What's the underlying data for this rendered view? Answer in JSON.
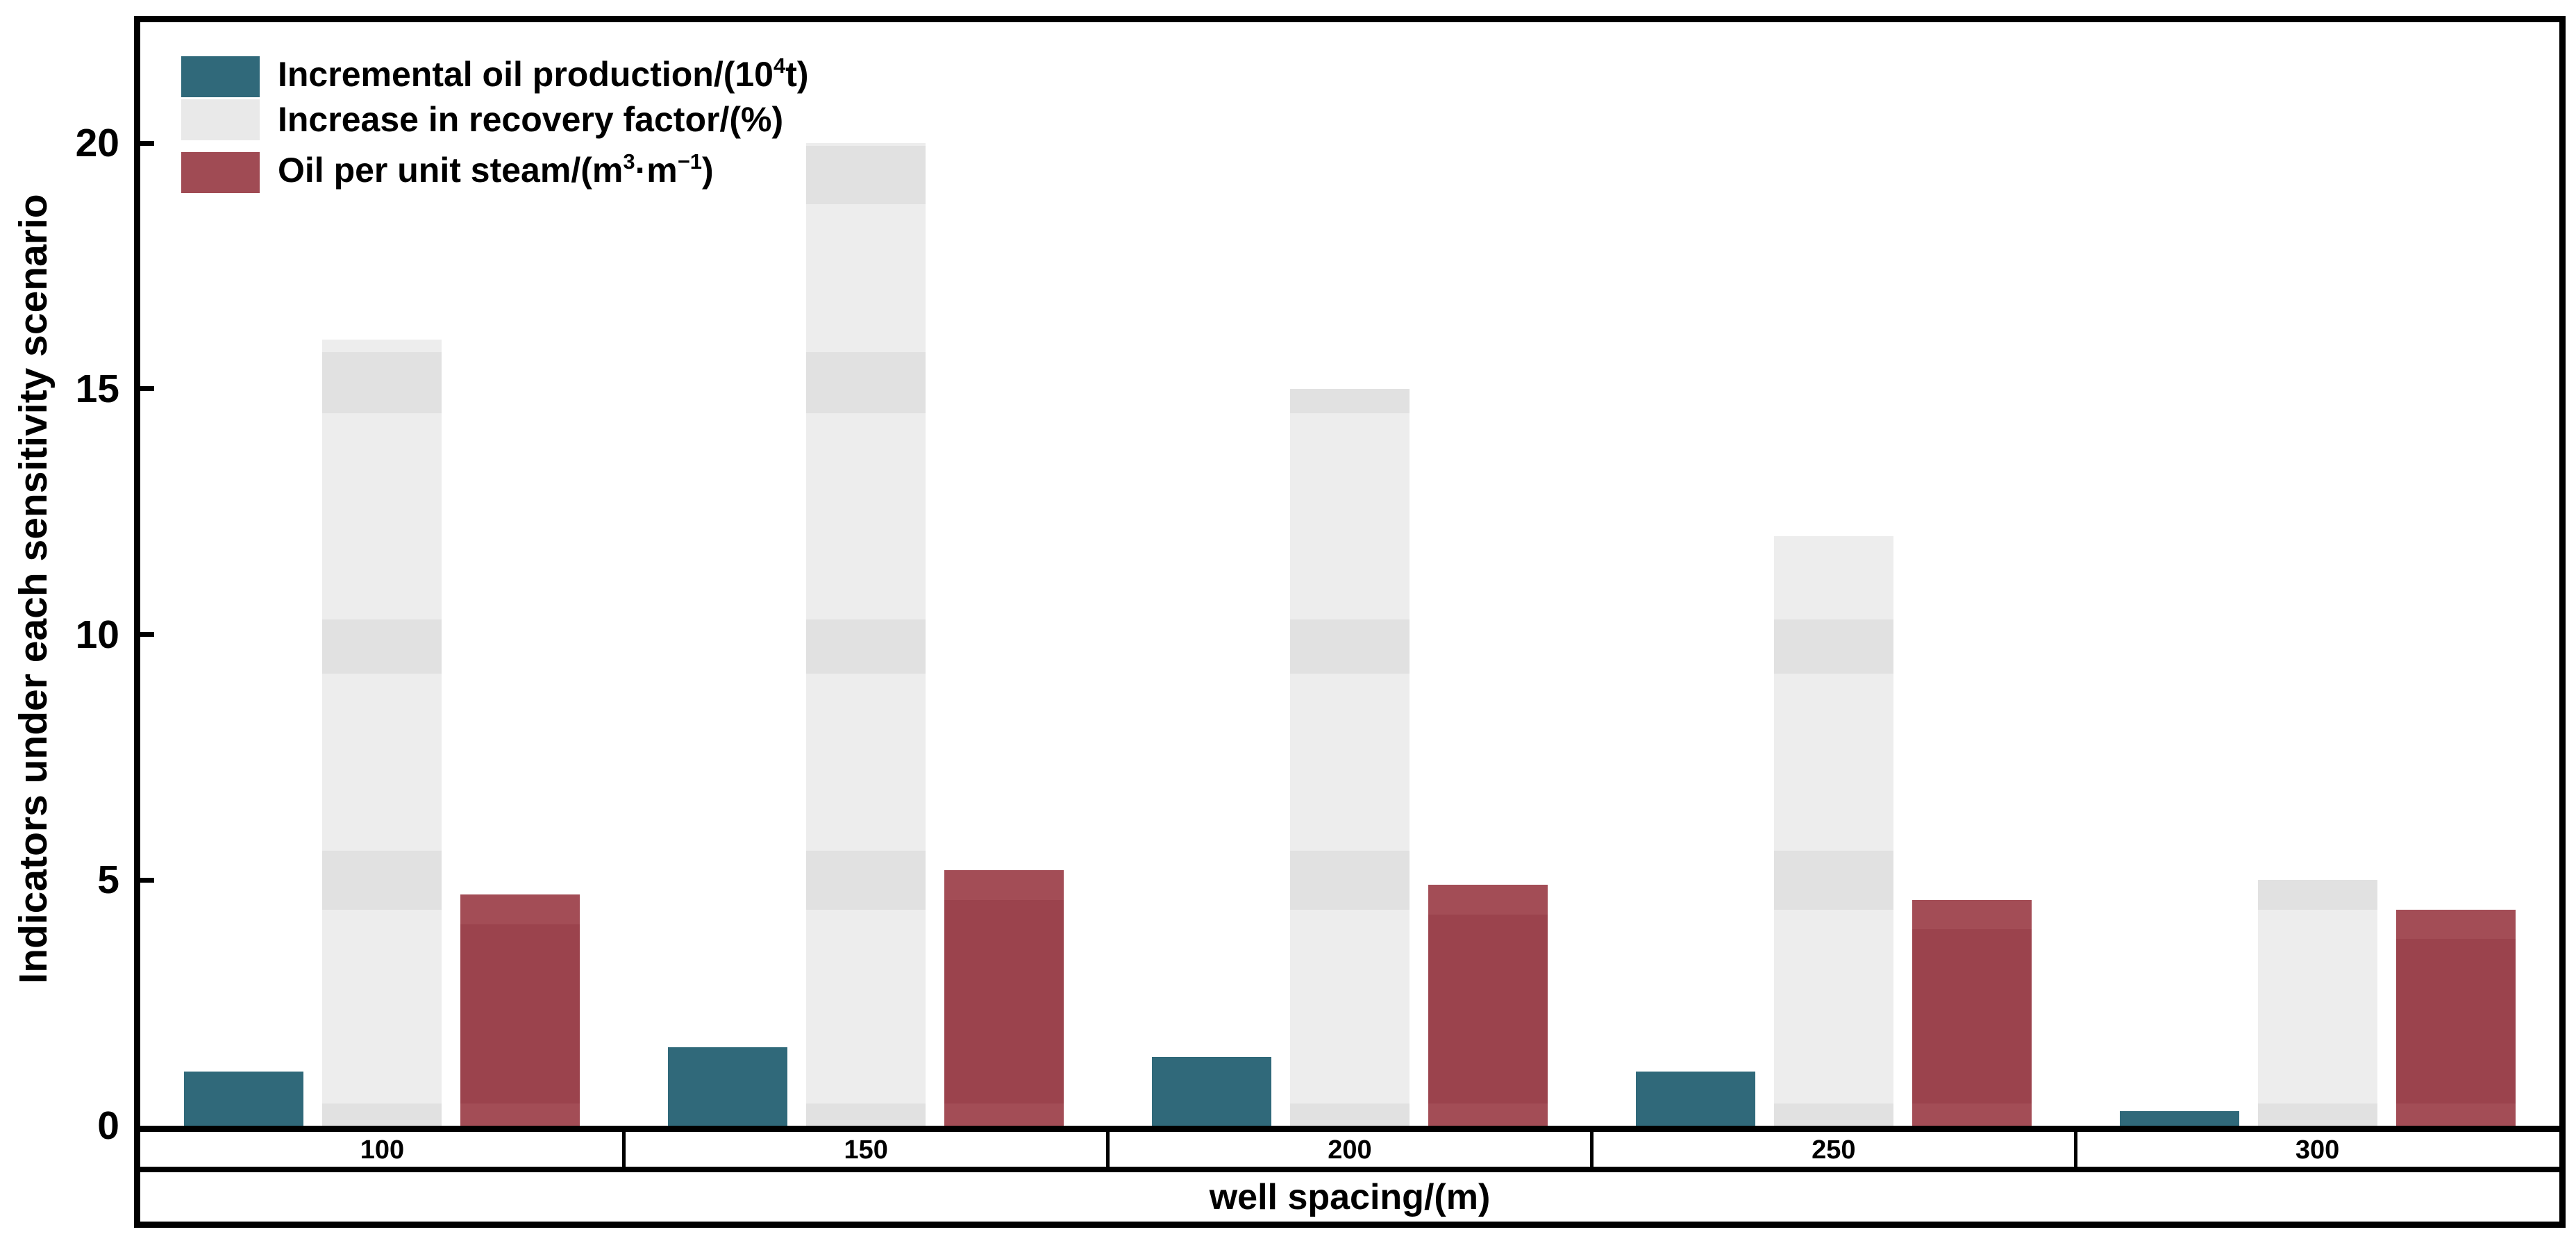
{
  "figure": {
    "background": "#ffffff"
  },
  "y_axis": {
    "title": "Indicators under each sensitivity scenario",
    "ticks": [
      0,
      5,
      10,
      15,
      20
    ]
  },
  "x_axis": {
    "title": "well spacing/(m)",
    "categories": [
      "100",
      "150",
      "200",
      "250",
      "300"
    ]
  },
  "legend": {
    "items": [
      {
        "key": "incremental-oil-production",
        "color": "#30697a",
        "label": "Incremental oil production/(10⁴t)",
        "segments": [
          {
            "text": "Incremental oil production/(10"
          },
          {
            "text": "4",
            "sup": true
          },
          {
            "text": "t)"
          }
        ]
      },
      {
        "key": "increase-in-recovery-factor",
        "color": "#e9e9e9",
        "label": "Increase in recovery factor/(%)",
        "segments": [
          {
            "text": "Increase in recovery factor/(%)"
          }
        ]
      },
      {
        "key": "oil-per-unit-steam",
        "color": "#a04b54",
        "label": "Oil per unit steam/(m³·m⁻¹)",
        "segments": [
          {
            "text": "Oil per unit steam/(m"
          },
          {
            "text": "3",
            "sup": true
          },
          {
            "text": "·m"
          },
          {
            "text": "−1",
            "sup": true
          },
          {
            "text": ")"
          }
        ]
      }
    ]
  },
  "chart_data": {
    "type": "bar",
    "categories": [
      100,
      150,
      200,
      250,
      300
    ],
    "series": [
      {
        "key": "incremental-oil-production",
        "name": "Incremental oil production/(10⁴t)",
        "color": "#30697a",
        "values": [
          1.1,
          1.6,
          1.4,
          1.1,
          0.3
        ]
      },
      {
        "key": "increase-in-recovery-factor",
        "name": "Increase in recovery factor/(%)",
        "color": "#ededed",
        "values": [
          16,
          20,
          15,
          12,
          5
        ],
        "dark_bands": {
          "color": "#e1e1e1",
          "ranges": [
            [
              0,
              0.45
            ],
            [
              4.4,
              5.6
            ],
            [
              9.2,
              10.3
            ],
            [
              14.5,
              15.75
            ],
            [
              18.75,
              19.95
            ]
          ]
        }
      },
      {
        "key": "oil-per-unit-steam",
        "name": "Oil per unit steam/(m³·m⁻¹)",
        "color": "#9b434d",
        "values": [
          4.7,
          5.2,
          4.9,
          4.6,
          4.4
        ],
        "light_color": "#a34d56",
        "light_bottom": [
          0,
          0.45
        ],
        "light_top_cap": 0.6
      }
    ],
    "title": "",
    "xlabel": "well spacing/(m)",
    "ylabel": "Indicators under each sensitivity scenario",
    "ylim": [
      0,
      22.5
    ],
    "grid": false,
    "legend_position": "top-left-inside"
  }
}
